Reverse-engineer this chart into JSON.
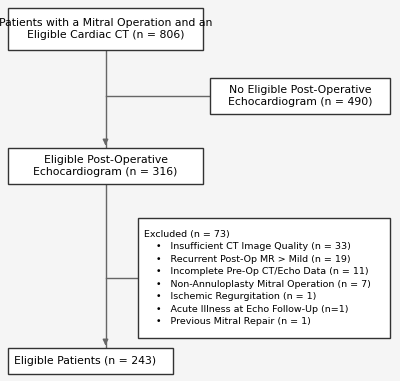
{
  "bg_color": "#f5f5f5",
  "figsize": [
    4.0,
    3.81
  ],
  "dpi": 100,
  "boxes": {
    "b1": {
      "text": "Patients with a Mitral Operation and an\nEligible Cardiac CT (n = 806)",
      "fontsize": 7.8
    },
    "b2": {
      "text": "No Eligible Post-Operative\nEchocardiogram (n = 490)",
      "fontsize": 7.8
    },
    "b3": {
      "text": "Eligible Post-Operative\nEchocardiogram (n = 316)",
      "fontsize": 7.8
    },
    "b4": {
      "text": "Excluded (n = 73)\n    •   Insufficient CT Image Quality (n = 33)\n    •   Recurrent Post-Op MR > Mild (n = 19)\n    •   Incomplete Pre-Op CT/Echo Data (n = 11)\n    •   Non-Annuloplasty Mitral Operation (n = 7)\n    •   Ischemic Regurgitation (n = 1)\n    •   Acute Illness at Echo Follow-Up (n=1)\n    •   Previous Mitral Repair (n = 1)",
      "fontsize": 6.8
    },
    "b5": {
      "text": "Eligible Patients (n = 243)",
      "fontsize": 7.8
    }
  },
  "edge_color": "#333333",
  "line_color": "#666666",
  "lw": 1.0
}
